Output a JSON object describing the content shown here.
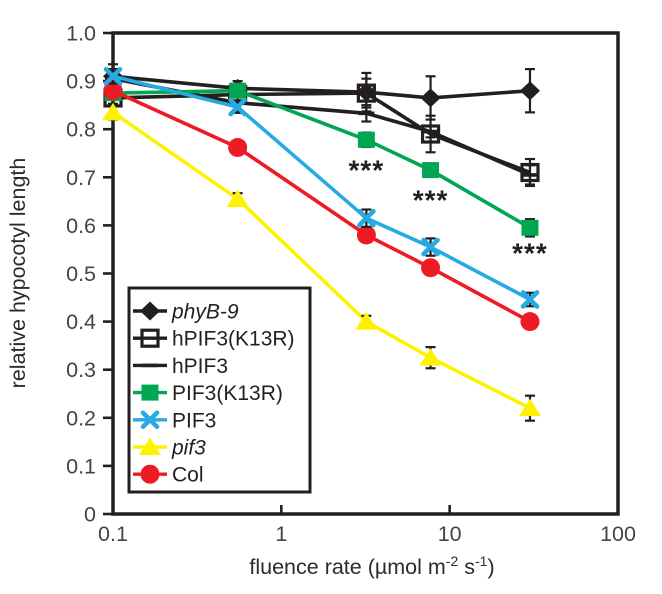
{
  "figure_name": "hypocotyl-fluence-response-chart",
  "colors": {
    "axis": "#231f20",
    "tick_label": "#454548",
    "star": "#231f20",
    "legend_border": "#231f20",
    "background": "#ffffff"
  },
  "chart_data": {
    "type": "line",
    "xscale": "log",
    "xlim": [
      0.1,
      100
    ],
    "ylim": [
      0,
      1.0
    ],
    "x_ticks": [
      0.1,
      1,
      10,
      100
    ],
    "x_tick_labels": [
      "0.1",
      "1",
      "10",
      "100"
    ],
    "y_ticks": [
      0,
      0.1,
      0.2,
      0.3,
      0.4,
      0.5,
      0.6,
      0.7,
      0.8,
      0.9,
      1.0
    ],
    "y_tick_labels": [
      "0",
      "0.1",
      "0.2",
      "0.3",
      "0.4",
      "0.5",
      "0.6",
      "0.7",
      "0.8",
      "0.9",
      "1.0"
    ],
    "ylabel": "relative hypocotyl length",
    "xlabel_parts": [
      {
        "text": "fluence rate (µmol m"
      },
      {
        "text": "-2",
        "sup": true
      },
      {
        "text": " s"
      },
      {
        "text": "-1",
        "sup": true
      },
      {
        "text": ")"
      }
    ],
    "x": [
      0.1,
      0.55,
      3.2,
      7.7,
      30
    ],
    "series": [
      {
        "name": "hPIF3",
        "italic": false,
        "color": "#231f20",
        "marker": "dash",
        "values": [
          0.905,
          0.855,
          0.833,
          0.795,
          0.705
        ],
        "errors": [
          0.012,
          0.02,
          0.017,
          0.012,
          0.02
        ]
      },
      {
        "name": "hPIF3(K13R)",
        "italic": false,
        "color": "#231f20",
        "marker": "open-square",
        "values": [
          0.865,
          0.872,
          0.875,
          0.79,
          0.71
        ],
        "errors": [
          0.012,
          0.012,
          0.03,
          0.038,
          0.028
        ]
      },
      {
        "name": "phyB-9",
        "italic": true,
        "color": "#231f20",
        "marker": "diamond",
        "values": [
          0.91,
          0.885,
          0.877,
          0.865,
          0.88
        ],
        "errors": [
          0.025,
          0.015,
          0.04,
          0.045,
          0.045
        ]
      },
      {
        "name": "PIF3(K13R)",
        "italic": false,
        "color": "#00a651",
        "marker": "square",
        "values": [
          0.875,
          0.88,
          0.778,
          0.715,
          0.595
        ],
        "errors": [
          0.012,
          0.01,
          0.015,
          0.012,
          0.018
        ]
      },
      {
        "name": "pif3",
        "italic": true,
        "color": "#fff200",
        "marker": "triangle",
        "values": [
          0.835,
          0.655,
          0.4,
          0.325,
          0.22
        ],
        "errors": [
          0.015,
          0.012,
          0.012,
          0.022,
          0.026
        ]
      },
      {
        "name": "Col",
        "italic": false,
        "color": "#ed1c24",
        "marker": "circle",
        "values": [
          0.88,
          0.762,
          0.58,
          0.512,
          0.4
        ],
        "errors": [
          0.01,
          0.01,
          0.012,
          0.012,
          0.012
        ]
      },
      {
        "name": "PIF3",
        "italic": false,
        "color": "#27aae1",
        "marker": "x",
        "values": [
          0.91,
          0.846,
          0.615,
          0.555,
          0.446
        ],
        "errors": [
          0.015,
          0.012,
          0.018,
          0.018,
          0.014
        ]
      }
    ],
    "legend": {
      "order": [
        "phyB-9",
        "hPIF3(K13R)",
        "hPIF3",
        "PIF3(K13R)",
        "PIF3",
        "pif3",
        "Col"
      ],
      "position": "lower-left"
    },
    "annotations": [
      {
        "x": 3.2,
        "y": 0.695,
        "text": "***"
      },
      {
        "x": 7.7,
        "y": 0.633,
        "text": "***"
      },
      {
        "x": 30,
        "y": 0.523,
        "text": "***"
      }
    ]
  }
}
